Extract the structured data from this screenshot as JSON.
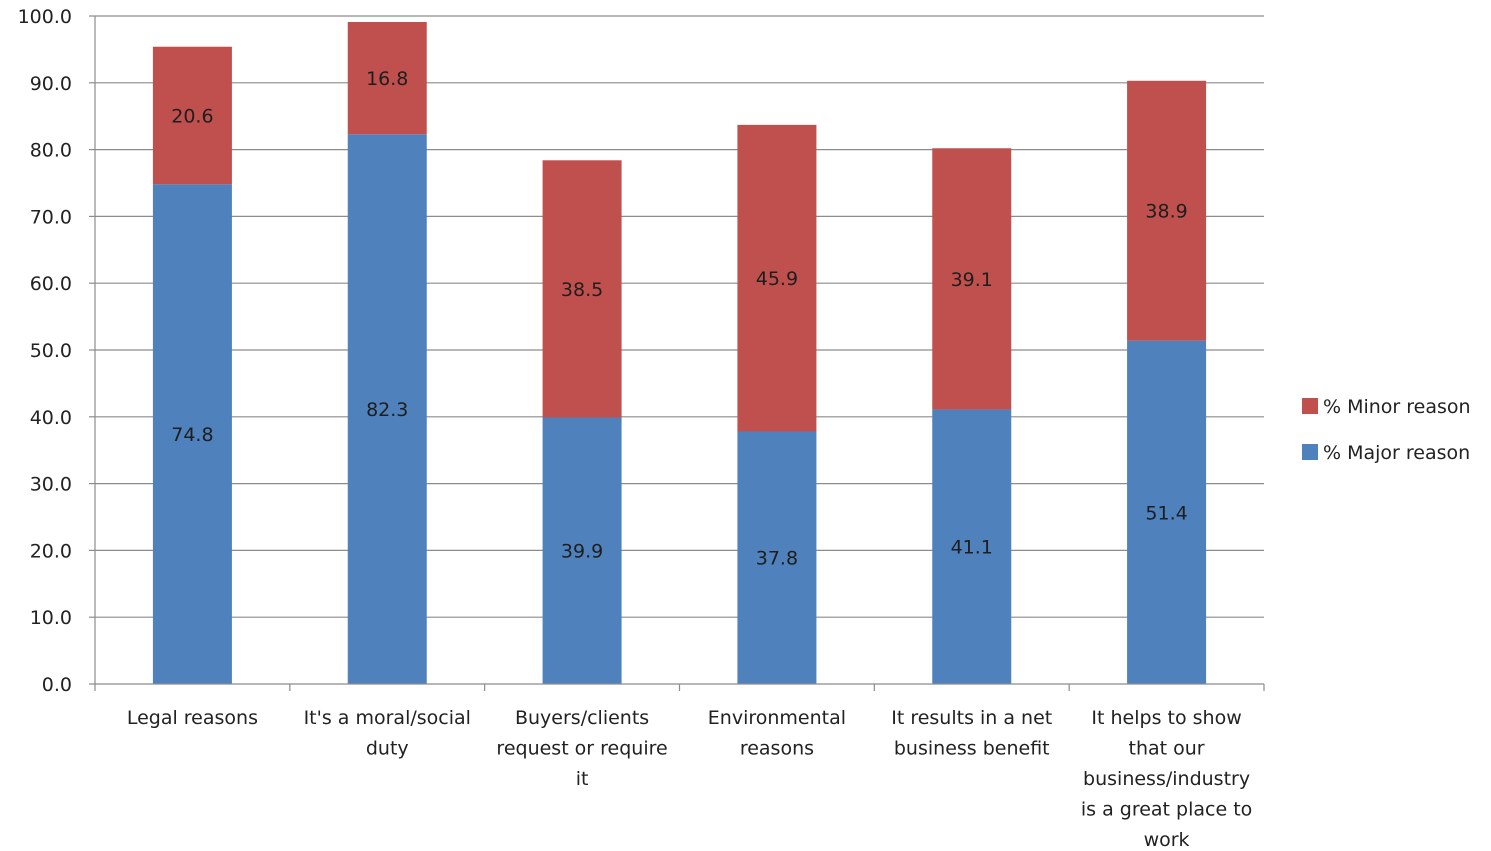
{
  "chart_data": {
    "type": "bar",
    "stacked": true,
    "categories": [
      "Legal reasons",
      "It's a moral/social duty",
      "Buyers/clients request or require it",
      "Environmental reasons",
      "It results in a net business benefit",
      "It helps to show that our business/industry is a great place to work"
    ],
    "category_lines": [
      [
        "Legal reasons"
      ],
      [
        "It's a moral/social",
        "duty"
      ],
      [
        "Buyers/clients",
        "request or require",
        "it"
      ],
      [
        "Environmental",
        "reasons"
      ],
      [
        "It results in a net",
        "business benefit"
      ],
      [
        "It helps to show",
        "that our",
        "business/industry",
        "is a great place to",
        "work"
      ]
    ],
    "series": [
      {
        "name": "% Major reason",
        "color": "#4f81bd",
        "values": [
          74.8,
          82.3,
          39.9,
          37.8,
          41.1,
          51.4
        ]
      },
      {
        "name": "% Minor reason",
        "color": "#c0504d",
        "values": [
          20.6,
          16.8,
          38.5,
          45.9,
          39.1,
          38.9
        ]
      }
    ],
    "ylim": [
      0,
      100
    ],
    "yticks": [
      "0.0",
      "10.0",
      "20.0",
      "30.0",
      "40.0",
      "50.0",
      "60.0",
      "70.0",
      "80.0",
      "90.0",
      "100.0"
    ],
    "grid": true,
    "legend_position": "right",
    "legend_order": [
      "% Minor reason",
      "% Major reason"
    ],
    "title": "",
    "xlabel": "",
    "ylabel": ""
  }
}
